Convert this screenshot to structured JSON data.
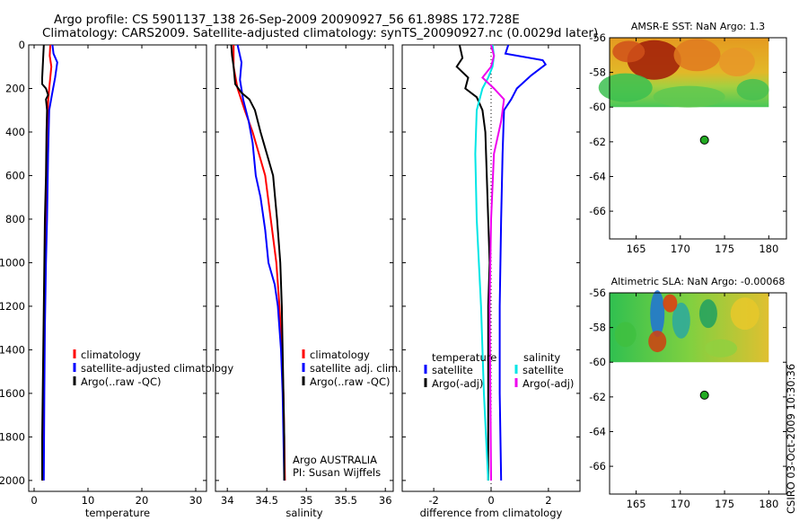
{
  "title_line1": "Argo profile: CS 5901137_138 26-Sep-2009 20090927_56 61.898S 172.728E",
  "title_line2": "Climatology: CARS2009. Satellite-adjusted climatology: synTS_20090927.nc (0.0029d later)",
  "timestamp": "CSIRO 03-Oct-2009 10:30:36",
  "colors": {
    "climatology": "#ff0000",
    "satellite": "#0000ff",
    "argo": "#000000",
    "sat_salinity": "#00e5e5",
    "argo_adj_salinity": "#ee00ee",
    "argo_marker": "#22aa22"
  },
  "chart_data": [
    {
      "type": "line",
      "xlabel": "temperature",
      "xlim": [
        -1,
        32
      ],
      "ylim": [
        0,
        2050
      ],
      "y_reversed": true,
      "xticks": [
        "0",
        "10",
        "20",
        "30"
      ],
      "yticks": [
        "0",
        "200",
        "400",
        "600",
        "800",
        "1000",
        "1200",
        "1400",
        "1600",
        "1800",
        "2000"
      ],
      "legend": [
        "climatology",
        "satellite-adjusted climatology",
        "Argo(..raw -QC)"
      ],
      "series": [
        {
          "name": "climatology",
          "points": [
            [
              3.0,
              0
            ],
            [
              2.9,
              50
            ],
            [
              3.2,
              100
            ],
            [
              2.8,
              200
            ],
            [
              2.6,
              260
            ],
            [
              2.4,
              400
            ],
            [
              2.3,
              600
            ],
            [
              2.2,
              800
            ],
            [
              2.1,
              1000
            ],
            [
              2.0,
              1200
            ],
            [
              1.9,
              1400
            ],
            [
              1.8,
              1600
            ],
            [
              1.7,
              1800
            ],
            [
              1.6,
              2000
            ]
          ]
        },
        {
          "name": "satellite-adjusted climatology",
          "points": [
            [
              3.4,
              0
            ],
            [
              3.6,
              40
            ],
            [
              4.3,
              80
            ],
            [
              3.9,
              150
            ],
            [
              3.3,
              230
            ],
            [
              2.8,
              300
            ],
            [
              2.6,
              500
            ],
            [
              2.4,
              800
            ],
            [
              2.2,
              1000
            ],
            [
              2.0,
              1300
            ],
            [
              1.9,
              1600
            ],
            [
              1.8,
              2000
            ]
          ]
        },
        {
          "name": "Argo(..raw -QC)",
          "points": [
            [
              1.8,
              0
            ],
            [
              1.7,
              50
            ],
            [
              1.6,
              100
            ],
            [
              1.5,
              150
            ],
            [
              1.5,
              180
            ],
            [
              2.2,
              200
            ],
            [
              2.6,
              230
            ],
            [
              2.2,
              250
            ],
            [
              2.4,
              300
            ],
            [
              2.3,
              400
            ],
            [
              2.2,
              600
            ],
            [
              2.0,
              800
            ],
            [
              1.9,
              1000
            ],
            [
              1.8,
              1200
            ],
            [
              1.7,
              1400
            ],
            [
              1.6,
              1600
            ],
            [
              1.5,
              1800
            ],
            [
              1.5,
              2000
            ]
          ]
        }
      ]
    },
    {
      "type": "line",
      "xlabel": "salinity",
      "xlim": [
        33.85,
        36.1
      ],
      "ylim": [
        0,
        2050
      ],
      "y_reversed": true,
      "xticks": [
        "34",
        "34.5",
        "35",
        "35.5",
        "36"
      ],
      "legend": [
        "climatology",
        "satellite adj. clim.",
        "Argo(..raw -QC)"
      ],
      "annotations": [
        "Argo AUSTRALIA",
        "PI: Susan Wijffels"
      ],
      "series": [
        {
          "name": "climatology",
          "points": [
            [
              34.08,
              0
            ],
            [
              34.08,
              100
            ],
            [
              34.13,
              200
            ],
            [
              34.22,
              300
            ],
            [
              34.32,
              400
            ],
            [
              34.4,
              500
            ],
            [
              34.48,
              600
            ],
            [
              34.55,
              800
            ],
            [
              34.62,
              1000
            ],
            [
              34.66,
              1200
            ],
            [
              34.69,
              1400
            ],
            [
              34.71,
              1600
            ],
            [
              34.72,
              1800
            ],
            [
              34.73,
              2000
            ]
          ]
        },
        {
          "name": "satellite adj. clim.",
          "points": [
            [
              34.13,
              0
            ],
            [
              34.18,
              80
            ],
            [
              34.16,
              160
            ],
            [
              34.2,
              250
            ],
            [
              34.27,
              350
            ],
            [
              34.32,
              450
            ],
            [
              34.36,
              600
            ],
            [
              34.42,
              700
            ],
            [
              34.48,
              850
            ],
            [
              34.52,
              1000
            ],
            [
              34.6,
              1100
            ],
            [
              34.64,
              1200
            ],
            [
              34.68,
              1400
            ],
            [
              34.7,
              1600
            ],
            [
              34.71,
              1800
            ],
            [
              34.72,
              2000
            ]
          ]
        },
        {
          "name": "Argo(..raw -QC)",
          "points": [
            [
              34.05,
              0
            ],
            [
              34.06,
              50
            ],
            [
              34.08,
              100
            ],
            [
              34.1,
              180
            ],
            [
              34.18,
              220
            ],
            [
              34.28,
              250
            ],
            [
              34.35,
              300
            ],
            [
              34.42,
              400
            ],
            [
              34.5,
              500
            ],
            [
              34.58,
              600
            ],
            [
              34.63,
              800
            ],
            [
              34.67,
              1000
            ],
            [
              34.69,
              1200
            ],
            [
              34.7,
              1400
            ],
            [
              34.71,
              1600
            ],
            [
              34.72,
              1800
            ],
            [
              34.72,
              2000
            ]
          ]
        }
      ]
    },
    {
      "type": "line",
      "xlabel": "difference from climatology",
      "xlim": [
        -3.1,
        3.1
      ],
      "ylim": [
        0,
        2050
      ],
      "y_reversed": true,
      "xticks": [
        "-2",
        "0",
        "2"
      ],
      "legend": [
        "temperature",
        "satellite",
        "Argo(-adj)",
        "salinity",
        "satellite",
        "Argo(-adj)"
      ],
      "series": [
        {
          "name": "temperature satellite",
          "points": [
            [
              0.6,
              0
            ],
            [
              0.5,
              40
            ],
            [
              1.8,
              70
            ],
            [
              1.9,
              90
            ],
            [
              1.4,
              140
            ],
            [
              0.9,
              200
            ],
            [
              0.7,
              250
            ],
            [
              0.45,
              300
            ],
            [
              0.4,
              500
            ],
            [
              0.35,
              800
            ],
            [
              0.3,
              1200
            ],
            [
              0.3,
              1600
            ],
            [
              0.35,
              2000
            ]
          ]
        },
        {
          "name": "temperature Argo(-adj)",
          "points": [
            [
              -1.1,
              0
            ],
            [
              -1.0,
              60
            ],
            [
              -1.2,
              100
            ],
            [
              -0.8,
              150
            ],
            [
              -0.9,
              200
            ],
            [
              -0.5,
              240
            ],
            [
              -0.3,
              300
            ],
            [
              -0.2,
              400
            ],
            [
              -0.15,
              600
            ],
            [
              -0.1,
              800
            ],
            [
              -0.05,
              1000
            ],
            [
              -0.1,
              1200
            ],
            [
              -0.1,
              1400
            ],
            [
              -0.1,
              1600
            ],
            [
              -0.1,
              1800
            ],
            [
              -0.1,
              2000
            ]
          ]
        },
        {
          "name": "salinity satellite",
          "points": [
            [
              0.05,
              0
            ],
            [
              0.1,
              50
            ],
            [
              0.05,
              100
            ],
            [
              -0.1,
              150
            ],
            [
              -0.3,
              200
            ],
            [
              -0.5,
              300
            ],
            [
              -0.55,
              500
            ],
            [
              -0.5,
              800
            ],
            [
              -0.35,
              1200
            ],
            [
              -0.25,
              1600
            ],
            [
              -0.1,
              2000
            ]
          ]
        },
        {
          "name": "salinity Argo(-adj)",
          "points": [
            [
              0.0,
              0
            ],
            [
              0.1,
              50
            ],
            [
              0.0,
              100
            ],
            [
              -0.3,
              150
            ],
            [
              0.1,
              200
            ],
            [
              0.45,
              250
            ],
            [
              0.35,
              350
            ],
            [
              0.1,
              500
            ],
            [
              0.0,
              800
            ],
            [
              -0.05,
              1200
            ],
            [
              0.0,
              2000
            ]
          ]
        }
      ]
    },
    {
      "type": "heatmap",
      "title": "AMSR-E SST: NaN Argo: 1.3",
      "xlim": [
        162,
        182
      ],
      "ylim": [
        -67.6,
        -56
      ],
      "xticks": [
        "165",
        "170",
        "175",
        "180"
      ],
      "yticks": [
        "-56",
        "-58",
        "-60",
        "-62",
        "-64",
        "-66"
      ],
      "argo_position": [
        172.728,
        -61.898
      ]
    },
    {
      "type": "heatmap",
      "title": "Altimetric SLA: NaN Argo: -0.00068",
      "xlim": [
        162,
        182
      ],
      "ylim": [
        -67.6,
        -56
      ],
      "xticks": [
        "165",
        "170",
        "175",
        "180"
      ],
      "yticks": [
        "-56",
        "-58",
        "-60",
        "-62",
        "-64",
        "-66"
      ],
      "argo_position": [
        172.728,
        -61.898
      ]
    }
  ]
}
